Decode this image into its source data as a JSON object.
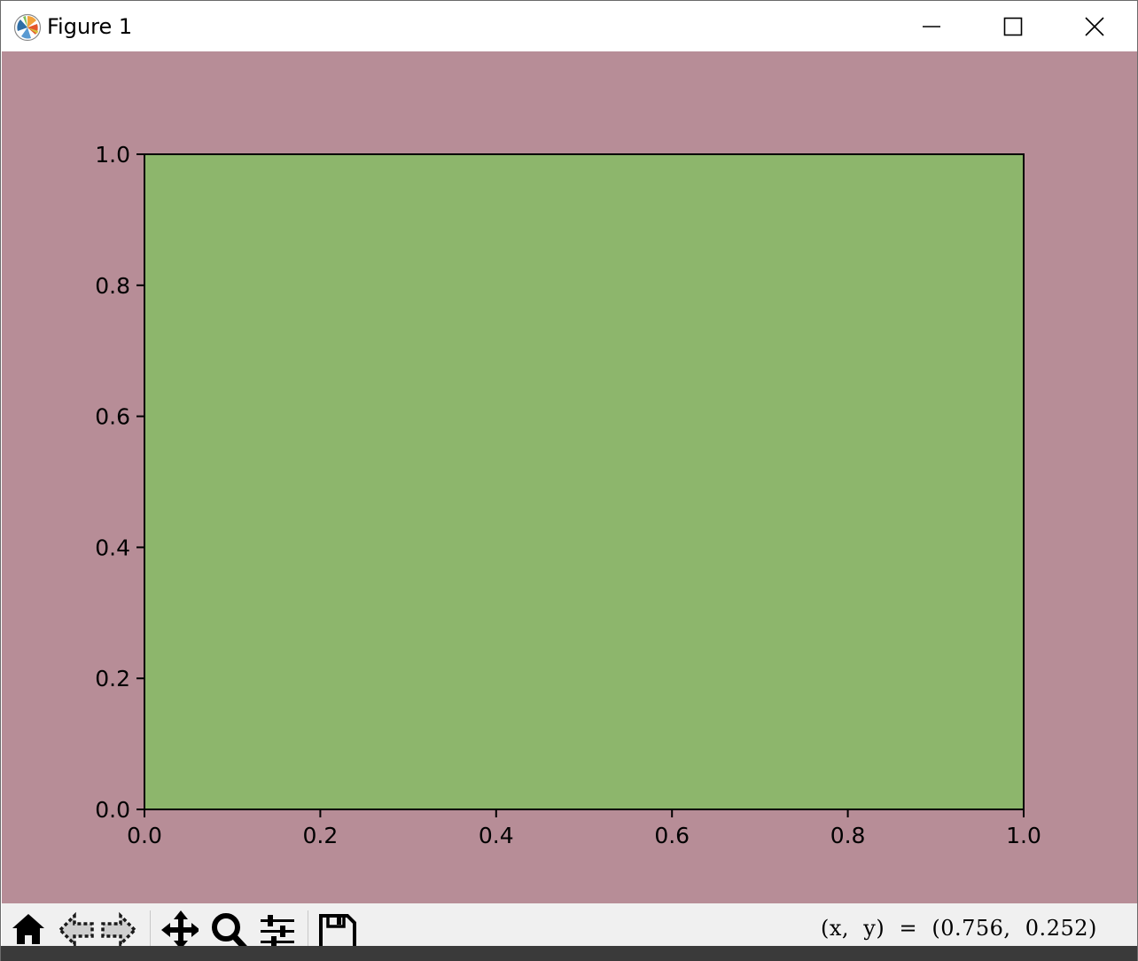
{
  "window": {
    "title": "Figure 1",
    "controls": [
      "minimize",
      "maximize",
      "close"
    ],
    "app_icon": "matplotlib-logo-icon"
  },
  "colors": {
    "figure_background": "#b78d97",
    "axes_background": "#8db66c",
    "toolbar_background": "#f0f0f0"
  },
  "toolbar": {
    "tools": [
      {
        "name": "home",
        "icon": "home-icon"
      },
      {
        "name": "back",
        "icon": "back-arrow-icon"
      },
      {
        "name": "forward",
        "icon": "forward-arrow-icon"
      },
      {
        "name": "pan",
        "icon": "pan-move-icon"
      },
      {
        "name": "zoom",
        "icon": "zoom-magnifier-icon"
      },
      {
        "name": "configure-subplots",
        "icon": "sliders-icon"
      },
      {
        "name": "save",
        "icon": "save-disk-icon"
      }
    ],
    "coordinates": "(x,  y)  =  (0.756,  0.252)"
  },
  "chart_data": {
    "type": "line",
    "series": [],
    "xlim": [
      0.0,
      1.0
    ],
    "ylim": [
      0.0,
      1.0
    ],
    "xticks": [
      "0.0",
      "0.2",
      "0.4",
      "0.6",
      "0.8",
      "1.0"
    ],
    "yticks": [
      "0.0",
      "0.2",
      "0.4",
      "0.6",
      "0.8",
      "1.0"
    ],
    "title": "",
    "xlabel": "",
    "ylabel": "",
    "grid": false,
    "legend": "none"
  }
}
